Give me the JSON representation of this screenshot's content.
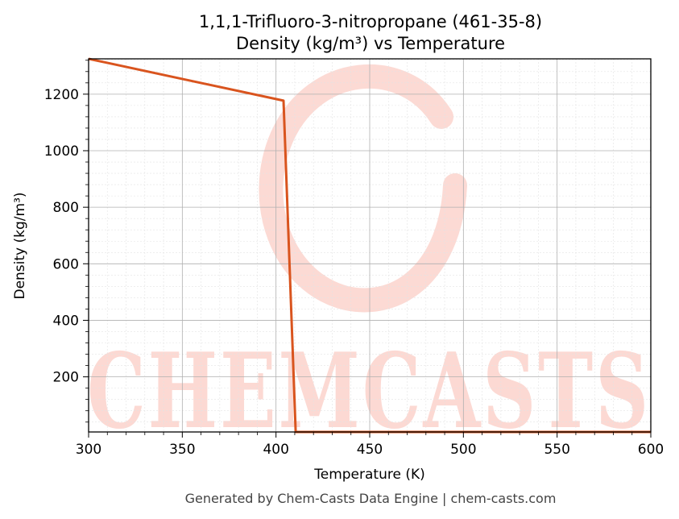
{
  "footer": "Generated by Chem-Casts Data Engine | chem-casts.com",
  "watermark": {
    "text": "CHEMCASTS",
    "color": "#fcd3cc"
  },
  "chart_data": {
    "type": "line",
    "title": "1,1,1-Trifluoro-3-nitropropane (461-35-8)",
    "subtitle": "Density (kg/m³) vs Temperature",
    "xlabel": "Temperature (K)",
    "ylabel": "Density (kg/m³)",
    "xlim": [
      300,
      600
    ],
    "ylim": [
      5,
      1325
    ],
    "xticks": [
      300,
      350,
      400,
      450,
      500,
      550,
      600
    ],
    "yticks": [
      200,
      400,
      600,
      800,
      1000,
      1200
    ],
    "grid": true,
    "series": [
      {
        "color": "#d9541e",
        "x": [
          300,
          404,
          410.5,
          411,
          600
        ],
        "y": [
          1325,
          1177,
          5,
          5,
          5
        ]
      }
    ]
  }
}
